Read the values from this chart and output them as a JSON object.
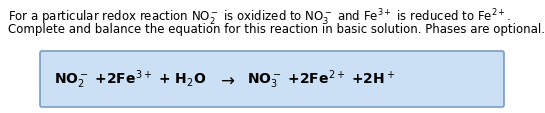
{
  "bg_color": "#ffffff",
  "box_bg_color": "#cce0f5",
  "box_edge_color": "#7a9dbf",
  "text_color": "#000000",
  "fig_width": 5.45,
  "fig_height": 1.14,
  "font_size_desc": 8.5,
  "font_size_eq": 10.0,
  "font_size_arrow": 12.0,
  "eq_left": "NO$_2^-$ +2Fe$^{3+}$ + H$_2$O",
  "eq_arrow": "$\\rightarrow$",
  "eq_right": "NO$_3^-$ +2Fe$^{2+}$ +2H$^+$"
}
